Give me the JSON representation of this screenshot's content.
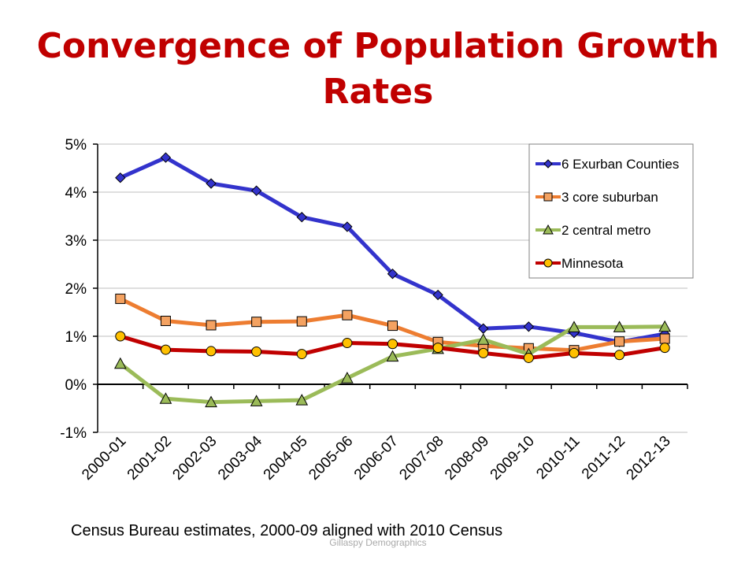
{
  "title_line1": "Convergence of Population Growth",
  "title_line2": "Rates",
  "note": "Census Bureau estimates, 2000-09 aligned with 2010 Census",
  "watermark": "Gillaspy Demographics",
  "chart_data": {
    "type": "line",
    "title": "Convergence of Population Growth Rates",
    "xlabel": "",
    "ylabel": "",
    "ylim": [
      -1,
      5
    ],
    "yticks": [
      -1,
      0,
      1,
      2,
      3,
      4,
      5
    ],
    "ytick_labels": [
      "-1%",
      "0%",
      "1%",
      "2%",
      "3%",
      "4%",
      "5%"
    ],
    "grid": "horizontal",
    "legend_position": "top-right",
    "categories": [
      "2000-01",
      "2001-02",
      "2002-03",
      "2003-04",
      "2004-05",
      "2005-06",
      "2006-07",
      "2007-08",
      "2008-09",
      "2009-10",
      "2010-11",
      "2011-12",
      "2012-13"
    ],
    "series": [
      {
        "name": "6 Exurban Counties",
        "color": "#3333cc",
        "marker": "diamond",
        "marker_color": "#3333cc",
        "values": [
          4.3,
          4.72,
          4.18,
          4.03,
          3.48,
          3.28,
          2.3,
          1.86,
          1.16,
          1.2,
          1.07,
          0.88,
          1.05
        ]
      },
      {
        "name": "3 core suburban",
        "color": "#ed7d31",
        "marker": "square",
        "marker_color": "#f4a261",
        "values": [
          1.78,
          1.32,
          1.23,
          1.3,
          1.31,
          1.44,
          1.22,
          0.88,
          0.8,
          0.75,
          0.71,
          0.89,
          0.95
        ]
      },
      {
        "name": "2 central metro",
        "color": "#9bbb59",
        "marker": "triangle",
        "marker_color": "#9bbb59",
        "values": [
          0.43,
          -0.3,
          -0.37,
          -0.35,
          -0.33,
          0.13,
          0.58,
          0.74,
          0.93,
          0.63,
          1.19,
          1.19,
          1.2
        ]
      },
      {
        "name": "Minnesota",
        "color": "#c00000",
        "marker": "circle",
        "marker_color": "#ffc000",
        "values": [
          1.0,
          0.72,
          0.69,
          0.68,
          0.63,
          0.86,
          0.84,
          0.76,
          0.65,
          0.55,
          0.65,
          0.61,
          0.76
        ]
      }
    ]
  }
}
